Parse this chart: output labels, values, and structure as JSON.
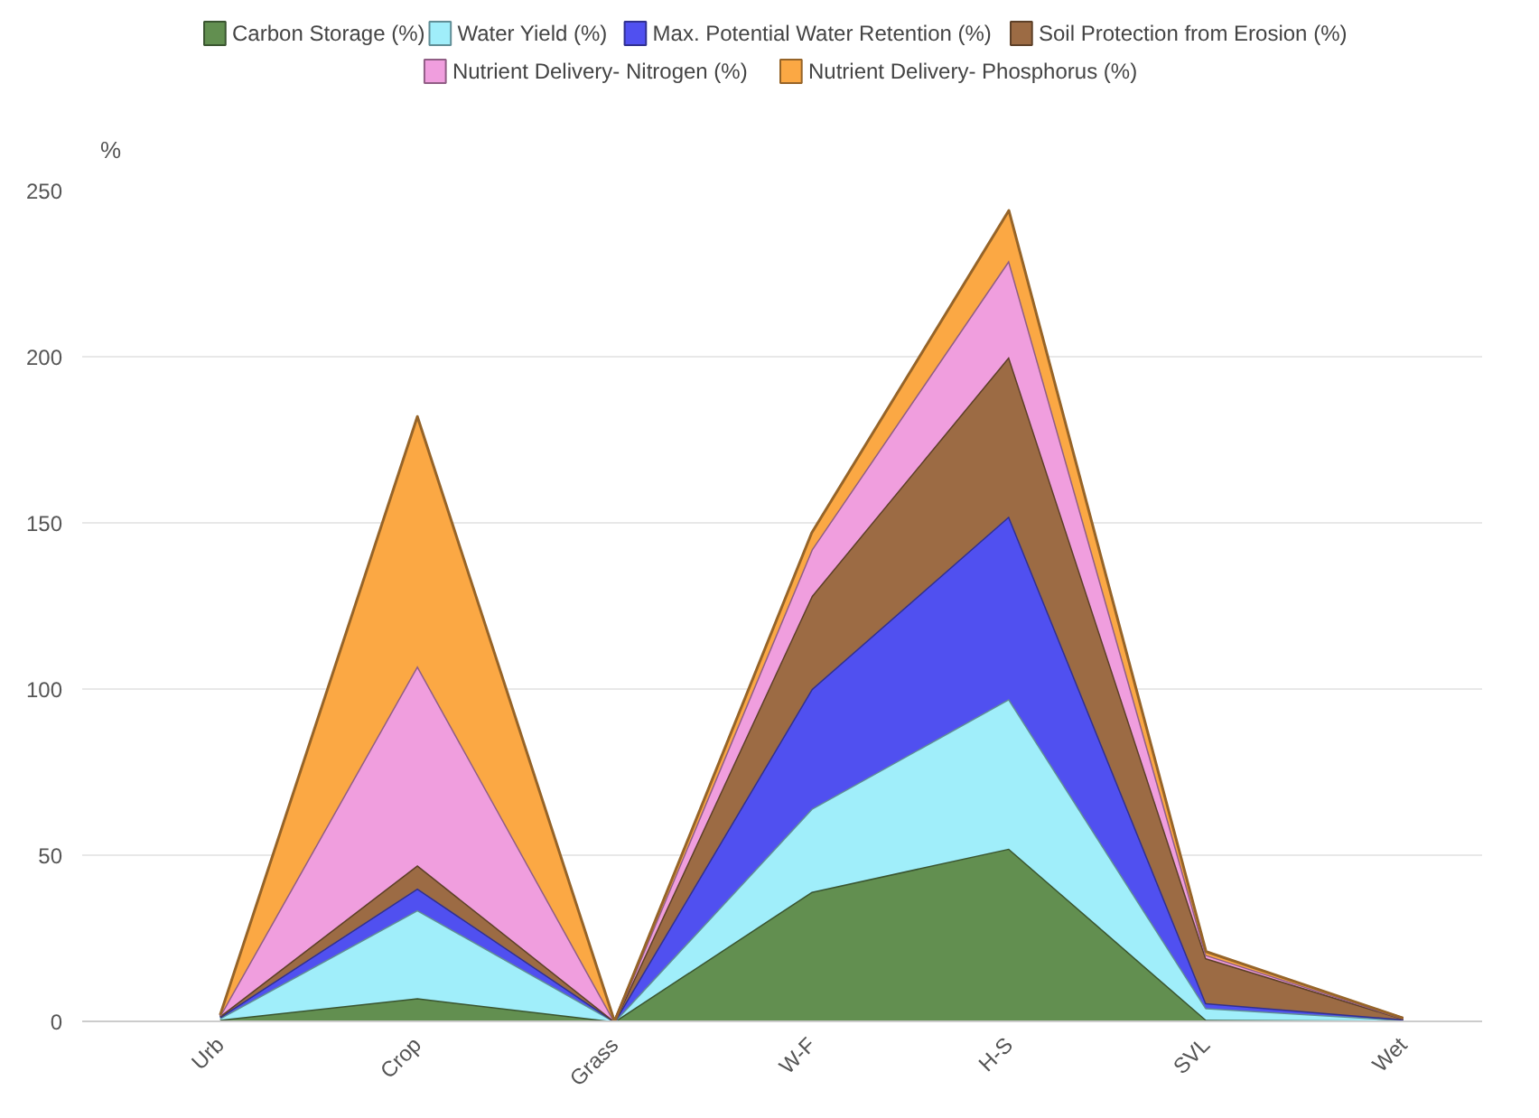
{
  "chart_data": {
    "type": "area",
    "stacked": true,
    "ylabel": "%",
    "categories": [
      "Urb",
      "Crop",
      "Grass",
      "W-F",
      "H-S",
      "SVL",
      "Wet"
    ],
    "series": [
      {
        "name": "Carbon Storage (%)",
        "color": "#628f50",
        "values": [
          0.5,
          7,
          0,
          39,
          52,
          0.5,
          0.2
        ]
      },
      {
        "name": "Water Yield (%)",
        "color": "#a0eefa",
        "values": [
          0.5,
          26.5,
          0,
          25,
          45,
          3.5,
          0.2
        ]
      },
      {
        "name": "Max. Potential Water Retention (%)",
        "color": "#5050f0",
        "values": [
          0.3,
          6.5,
          0,
          36,
          55,
          1.5,
          0.2
        ]
      },
      {
        "name": "Soil Protection from Erosion (%)",
        "color": "#9c6b44",
        "values": [
          0.3,
          7,
          0,
          28,
          48,
          13.5,
          0.2
        ]
      },
      {
        "name": "Nutrient Delivery- Nitrogen (%)",
        "color": "#f09ede",
        "values": [
          0.2,
          60,
          0,
          14,
          29,
          1,
          0.1
        ]
      },
      {
        "name": "Nutrient Delivery- Phosphorus (%)",
        "color": "#fba844",
        "values": [
          0.2,
          75,
          0,
          5,
          15,
          1,
          0.1
        ]
      }
    ],
    "ylim": [
      0,
      250
    ],
    "yticks": [
      0,
      50,
      100,
      150,
      200,
      250
    ],
    "grid": "y",
    "legend": "top"
  }
}
